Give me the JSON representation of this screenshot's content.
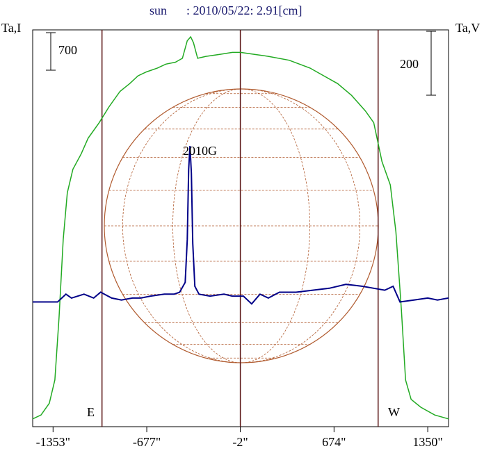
{
  "header": {
    "title_object": "sun",
    "title_rest": ": 2010/05/22: 2.91[cm]"
  },
  "chart_data": {
    "type": "line",
    "title": "sun : 2010/05/22: 2.91[cm]",
    "xlim": [
      -1500,
      1500
    ],
    "x_ticks": [
      {
        "value": -1353,
        "label": "-1353\""
      },
      {
        "value": -677,
        "label": "-677\""
      },
      {
        "value": -2,
        "label": "-2\""
      },
      {
        "value": 674,
        "label": "674\""
      },
      {
        "value": 1350,
        "label": "1350\""
      }
    ],
    "left_axis_label": "Ta,I",
    "right_axis_label": "Ta,V",
    "left_scale_label": "700",
    "right_scale_label": "200",
    "limb_labels": {
      "east": "E",
      "west": "W"
    },
    "vertical_lines_x": [
      -1000,
      -2,
      992
    ],
    "annotation": {
      "text": "2010G"
    },
    "colors": {
      "intensity": "#22aa22",
      "polarization": "#000088",
      "disk": "#b05a2e",
      "limb_lines": "#5a1414",
      "title": "#1a1a6e"
    },
    "series": [
      {
        "name": "Ta,I",
        "color": "#22aa22",
        "points": [
          [
            -1500,
            0.02
          ],
          [
            -1440,
            0.03
          ],
          [
            -1380,
            0.06
          ],
          [
            -1340,
            0.12
          ],
          [
            -1310,
            0.28
          ],
          [
            -1280,
            0.48
          ],
          [
            -1250,
            0.6
          ],
          [
            -1210,
            0.66
          ],
          [
            -1150,
            0.7
          ],
          [
            -1100,
            0.74
          ],
          [
            -1020,
            0.78
          ],
          [
            -950,
            0.82
          ],
          [
            -870,
            0.86
          ],
          [
            -800,
            0.88
          ],
          [
            -740,
            0.9
          ],
          [
            -680,
            0.91
          ],
          [
            -600,
            0.92
          ],
          [
            -540,
            0.93
          ],
          [
            -470,
            0.935
          ],
          [
            -420,
            0.945
          ],
          [
            -385,
            0.99
          ],
          [
            -360,
            1.0
          ],
          [
            -340,
            0.985
          ],
          [
            -310,
            0.945
          ],
          [
            -250,
            0.95
          ],
          [
            -150,
            0.955
          ],
          [
            -60,
            0.96
          ],
          [
            0,
            0.96
          ],
          [
            100,
            0.955
          ],
          [
            200,
            0.95
          ],
          [
            350,
            0.94
          ],
          [
            500,
            0.92
          ],
          [
            600,
            0.9
          ],
          [
            700,
            0.88
          ],
          [
            800,
            0.85
          ],
          [
            900,
            0.81
          ],
          [
            960,
            0.78
          ],
          [
            1020,
            0.68
          ],
          [
            1080,
            0.62
          ],
          [
            1120,
            0.5
          ],
          [
            1160,
            0.3
          ],
          [
            1190,
            0.12
          ],
          [
            1230,
            0.07
          ],
          [
            1300,
            0.05
          ],
          [
            1400,
            0.03
          ],
          [
            1500,
            0.02
          ]
        ]
      },
      {
        "name": "Ta,V",
        "color": "#000088",
        "points": [
          [
            -1500,
            0.32
          ],
          [
            -1400,
            0.32
          ],
          [
            -1320,
            0.32
          ],
          [
            -1260,
            0.34
          ],
          [
            -1220,
            0.33
          ],
          [
            -1130,
            0.34
          ],
          [
            -1060,
            0.33
          ],
          [
            -1010,
            0.345
          ],
          [
            -930,
            0.33
          ],
          [
            -860,
            0.325
          ],
          [
            -780,
            0.33
          ],
          [
            -720,
            0.33
          ],
          [
            -650,
            0.335
          ],
          [
            -550,
            0.34
          ],
          [
            -480,
            0.34
          ],
          [
            -440,
            0.345
          ],
          [
            -400,
            0.37
          ],
          [
            -385,
            0.48
          ],
          [
            -375,
            0.66
          ],
          [
            -365,
            0.72
          ],
          [
            -355,
            0.65
          ],
          [
            -345,
            0.47
          ],
          [
            -330,
            0.36
          ],
          [
            -300,
            0.34
          ],
          [
            -220,
            0.335
          ],
          [
            -120,
            0.34
          ],
          [
            -60,
            0.335
          ],
          [
            20,
            0.335
          ],
          [
            80,
            0.315
          ],
          [
            140,
            0.34
          ],
          [
            200,
            0.33
          ],
          [
            280,
            0.345
          ],
          [
            400,
            0.345
          ],
          [
            520,
            0.35
          ],
          [
            640,
            0.355
          ],
          [
            760,
            0.365
          ],
          [
            880,
            0.36
          ],
          [
            960,
            0.355
          ],
          [
            1040,
            0.35
          ],
          [
            1100,
            0.36
          ],
          [
            1150,
            0.32
          ],
          [
            1250,
            0.325
          ],
          [
            1350,
            0.33
          ],
          [
            1420,
            0.325
          ],
          [
            1500,
            0.33
          ]
        ]
      }
    ]
  }
}
